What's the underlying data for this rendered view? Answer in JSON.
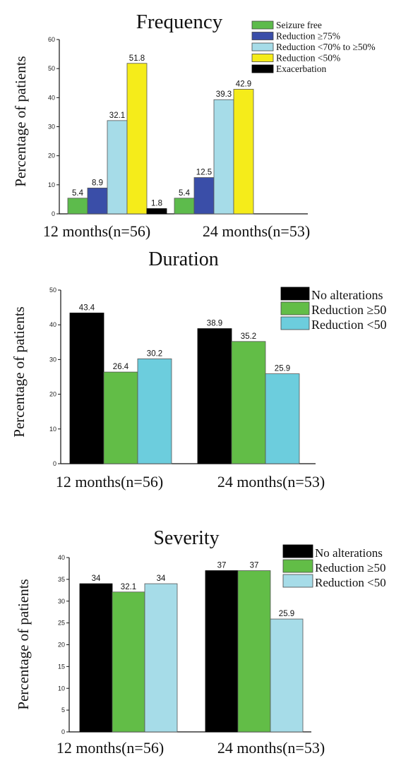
{
  "chart_data": [
    {
      "type": "bar",
      "title": "Frequency",
      "ylabel": "Percentage of patients",
      "xlabel": "",
      "ylim": [
        0,
        60
      ],
      "yticks": [
        0,
        10,
        20,
        30,
        40,
        50,
        60
      ],
      "categories": [
        "12 months(n=56)",
        "24 months(n=53)"
      ],
      "series": [
        {
          "name": "Seizure free",
          "color": "#5dbb4c",
          "values": [
            5.4,
            5.4
          ]
        },
        {
          "name": "Reduction ≥75%",
          "color": "#3a4ea8",
          "values": [
            8.9,
            12.5
          ]
        },
        {
          "name": "Reduction <70% to ≥50%",
          "color": "#a6dce8",
          "values": [
            32.1,
            39.3
          ]
        },
        {
          "name": "Reduction <50%",
          "color": "#f5ec1a",
          "values": [
            51.8,
            42.9
          ]
        },
        {
          "name": "Exacerbation",
          "color": "#000000",
          "values": [
            1.8,
            null
          ]
        }
      ],
      "legend_position": "top-right",
      "grid": false
    },
    {
      "type": "bar",
      "title": "Duration",
      "ylabel": "Percentage of patients",
      "xlabel": "",
      "ylim": [
        0,
        50
      ],
      "yticks": [
        0,
        10,
        20,
        30,
        40,
        50
      ],
      "categories": [
        "12 months(n=56)",
        "24 months(n=53)"
      ],
      "series": [
        {
          "name": "No alterations",
          "color": "#000000",
          "values": [
            43.4,
            38.9
          ]
        },
        {
          "name": "Reduction ≥50",
          "color": "#62bd47",
          "values": [
            26.4,
            35.2
          ]
        },
        {
          "name": "Reduction <50",
          "color": "#6ccddd",
          "values": [
            30.2,
            25.9
          ]
        }
      ],
      "legend_position": "top-right",
      "grid": false
    },
    {
      "type": "bar",
      "title": "Severity",
      "ylabel": "Percentage of patients",
      "xlabel": "",
      "ylim": [
        0,
        40
      ],
      "yticks": [
        0,
        5,
        10,
        15,
        20,
        25,
        30,
        35,
        40
      ],
      "categories": [
        "12 months(n=56)",
        "24 months(n=53)"
      ],
      "series": [
        {
          "name": "No alterations",
          "color": "#000000",
          "values": [
            34,
            37
          ]
        },
        {
          "name": "Reduction ≥50",
          "color": "#62bd47",
          "values": [
            32.1,
            37
          ]
        },
        {
          "name": "Reduction <50",
          "color": "#a6dce8",
          "values": [
            34,
            25.9
          ]
        }
      ],
      "legend_position": "top-right",
      "grid": false
    }
  ]
}
